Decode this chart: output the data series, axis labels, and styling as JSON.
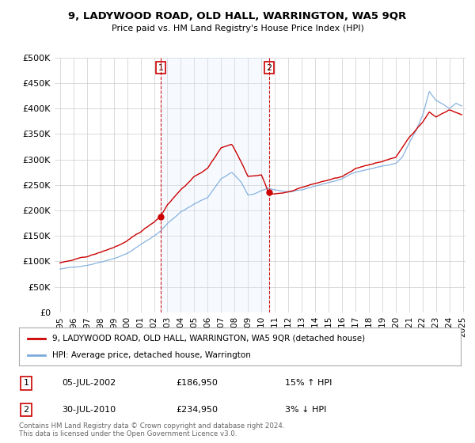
{
  "title": "9, LADYWOOD ROAD, OLD HALL, WARRINGTON, WA5 9QR",
  "subtitle": "Price paid vs. HM Land Registry's House Price Index (HPI)",
  "ylabel_ticks": [
    "£0",
    "£50K",
    "£100K",
    "£150K",
    "£200K",
    "£250K",
    "£300K",
    "£350K",
    "£400K",
    "£450K",
    "£500K"
  ],
  "ytick_values": [
    0,
    50000,
    100000,
    150000,
    200000,
    250000,
    300000,
    350000,
    400000,
    450000,
    500000
  ],
  "xlim_start": 1995.0,
  "xlim_end": 2025.2,
  "ylim": [
    0,
    500000
  ],
  "sale1_year": 2002.5,
  "sale1_price": 186950,
  "sale2_year": 2010.58,
  "sale2_price": 234950,
  "legend_line1": "9, LADYWOOD ROAD, OLD HALL, WARRINGTON, WA5 9QR (detached house)",
  "legend_line2": "HPI: Average price, detached house, Warrington",
  "label1_date": "05-JUL-2002",
  "label1_price": "£186,950",
  "label1_hpi": "15% ↑ HPI",
  "label2_date": "30-JUL-2010",
  "label2_price": "£234,950",
  "label2_hpi": "3% ↓ HPI",
  "footer": "Contains HM Land Registry data © Crown copyright and database right 2024.\nThis data is licensed under the Open Government Licence v3.0.",
  "hpi_color": "#7aaadc",
  "shade_color": "#ddeeff",
  "price_color": "#cc0000",
  "marker_color": "#cc0000",
  "vline_color": "#cc0000",
  "bg_color": "#ffffff",
  "grid_color": "#cccccc"
}
